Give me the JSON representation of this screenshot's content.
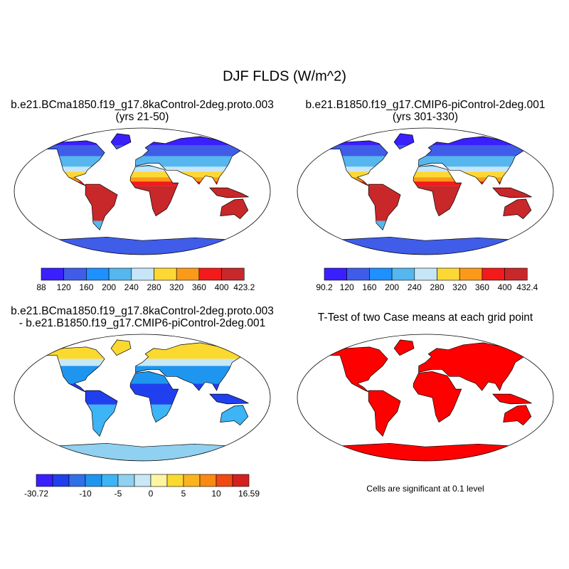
{
  "title": "DJF FLDS (W/m^2)",
  "panels": [
    {
      "title": [
        "b.e21.BCma1850.f19_g17.8kaControl-2deg.proto.003",
        "(yrs 21-50)"
      ],
      "colorbar": {
        "labels": [
          88,
          120,
          160,
          200,
          240,
          280,
          320,
          360,
          400,
          423.2
        ],
        "colors": [
          "#3a1fff",
          "#3f5de8",
          "#1e90ff",
          "#55b7ee",
          "#c6e6f8",
          "#fdd835",
          "#fb9a1a",
          "#f21a1a",
          "#c8282a"
        ]
      }
    },
    {
      "title": [
        "b.e21.B1850.f19_g17.CMIP6-piControl-2deg.001",
        "(yrs 301-330)"
      ],
      "colorbar": {
        "labels": [
          90.2,
          120,
          160,
          200,
          240,
          280,
          320,
          360,
          400,
          432.4
        ],
        "colors": [
          "#3a1fff",
          "#3f5de8",
          "#1e90ff",
          "#55b7ee",
          "#c6e6f8",
          "#fdd835",
          "#fb9a1a",
          "#f21a1a",
          "#c8282a"
        ]
      }
    },
    {
      "title": [
        "b.e21.BCma1850.f19_g17.8kaControl-2deg.proto.003",
        "- b.e21.B1850.f19_g17.CMIP6-piControl-2deg.001"
      ],
      "colorbar": {
        "labels": [
          -30.72,
          -10,
          -5,
          0,
          5,
          10,
          16.59
        ],
        "colors": [
          "#3a1fff",
          "#2040ef",
          "#3070e8",
          "#1e96f0",
          "#3cb4f5",
          "#90d0f0",
          "#c8e8f5",
          "#fff5a0",
          "#fcd92e",
          "#fcb41e",
          "#fa8a14",
          "#f24814",
          "#d42020"
        ]
      }
    },
    {
      "title": [
        "T-Test of two Case means at each grid point"
      ],
      "note": "Cells are significant at 0.1 level"
    }
  ]
}
